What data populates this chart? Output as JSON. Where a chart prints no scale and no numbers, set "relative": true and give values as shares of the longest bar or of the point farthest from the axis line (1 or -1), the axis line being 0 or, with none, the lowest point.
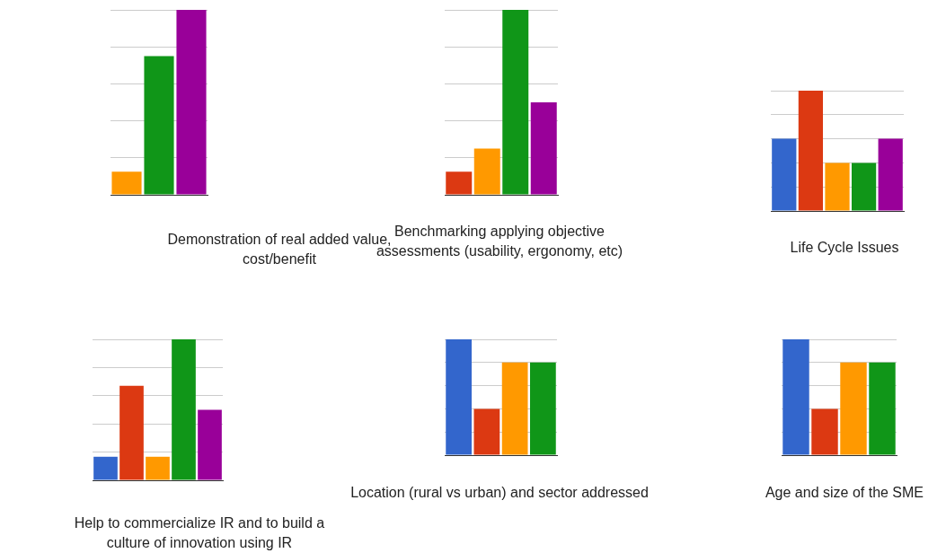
{
  "chart_data": [
    {
      "type": "bar",
      "title": "Demonstration of real added value, cost/benefit",
      "categories": [
        null,
        null,
        null
      ],
      "values": [
        0.125,
        0.75,
        1
      ],
      "colors": [
        "#ff9900",
        "#109618",
        "#990099"
      ],
      "relative": true,
      "grid": true
    },
    {
      "type": "bar",
      "title": "Benchmarking applying objective assessments (usability, ergonomy, etc)",
      "categories": [
        null,
        null,
        null,
        null
      ],
      "values": [
        0.125,
        0.25,
        1,
        0.5
      ],
      "colors": [
        "#dc3912",
        "#ff9900",
        "#109618",
        "#990099"
      ],
      "relative": true,
      "grid": true
    },
    {
      "type": "bar",
      "title": "Life Cycle Issues",
      "categories": [
        null,
        null,
        null,
        null,
        null
      ],
      "values": [
        0.6,
        1,
        0.4,
        0.4,
        0.6
      ],
      "colors": [
        "#3366cc",
        "#dc3912",
        "#ff9900",
        "#109618",
        "#990099"
      ],
      "relative": true,
      "grid": true
    },
    {
      "type": "bar",
      "title": "Help to commercialize IR and to build a culture of innovation using IR",
      "categories": [
        null,
        null,
        null,
        null,
        null
      ],
      "values": [
        0.167,
        0.67,
        0.167,
        1,
        0.5
      ],
      "colors": [
        "#3366cc",
        "#dc3912",
        "#ff9900",
        "#109618",
        "#990099"
      ],
      "relative": true,
      "grid": true
    },
    {
      "type": "bar",
      "title": "Location (rural vs urban) and sector addressed",
      "categories": [
        null,
        null,
        null,
        null
      ],
      "values": [
        1,
        0.4,
        0.8,
        0.8
      ],
      "colors": [
        "#3366cc",
        "#dc3912",
        "#ff9900",
        "#109618"
      ],
      "relative": true,
      "grid": true
    },
    {
      "type": "bar",
      "title": "Age and size of the SME",
      "categories": [
        null,
        null,
        null,
        null
      ],
      "values": [
        1,
        0.4,
        0.8,
        0.8
      ],
      "colors": [
        "#3366cc",
        "#dc3912",
        "#ff9900",
        "#109618"
      ],
      "relative": true,
      "grid": true
    }
  ]
}
